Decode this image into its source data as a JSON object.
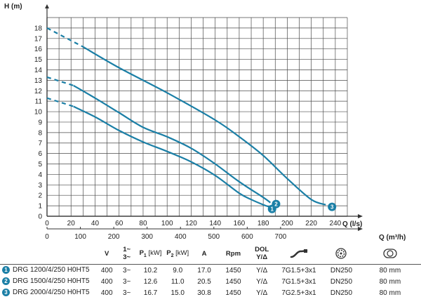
{
  "chart_data": {
    "type": "line",
    "title": "",
    "ylabel": "H (m)",
    "xlabel": "Q (l/s)",
    "x2label": "Q (m³/h)",
    "xlim": [
      0,
      250
    ],
    "ylim": [
      0,
      19
    ],
    "xticks": [
      0,
      20,
      40,
      60,
      80,
      100,
      120,
      140,
      160,
      180,
      200,
      220,
      240
    ],
    "yticks": [
      0,
      1,
      2,
      3,
      4,
      5,
      6,
      7,
      8,
      9,
      10,
      11,
      12,
      13,
      14,
      15,
      16,
      17,
      18
    ],
    "x2ticks": [
      0,
      100,
      200,
      300,
      400,
      500,
      600,
      700
    ],
    "grid": true,
    "line_color": "#1b7fa6",
    "series": [
      {
        "name": "1",
        "dashed": [
          [
            0,
            11.3
          ],
          [
            22,
            10.5
          ]
        ],
        "values": [
          [
            22,
            10.5
          ],
          [
            40,
            9.5
          ],
          [
            60,
            8.2
          ],
          [
            80,
            7.1
          ],
          [
            100,
            6.2
          ],
          [
            120,
            5.2
          ],
          [
            140,
            3.9
          ],
          [
            160,
            2.2
          ],
          [
            170,
            1.6
          ],
          [
            180,
            1.1
          ],
          [
            185,
            0.9
          ]
        ]
      },
      {
        "name": "2",
        "dashed": [
          [
            0,
            13.3
          ],
          [
            22,
            12.5
          ]
        ],
        "values": [
          [
            22,
            12.5
          ],
          [
            40,
            11.3
          ],
          [
            60,
            9.9
          ],
          [
            80,
            8.5
          ],
          [
            100,
            7.6
          ],
          [
            120,
            6.5
          ],
          [
            140,
            5.0
          ],
          [
            160,
            3.3
          ],
          [
            180,
            1.8
          ],
          [
            186,
            1.3
          ]
        ]
      },
      {
        "name": "3",
        "dashed": [
          [
            0,
            18.0
          ],
          [
            30,
            16.2
          ]
        ],
        "values": [
          [
            30,
            16.2
          ],
          [
            60,
            14.2
          ],
          [
            100,
            11.8
          ],
          [
            140,
            9.2
          ],
          [
            160,
            7.6
          ],
          [
            180,
            5.8
          ],
          [
            200,
            3.6
          ],
          [
            220,
            1.6
          ],
          [
            232,
            1.1
          ]
        ]
      }
    ]
  },
  "table": {
    "headers": {
      "v": "V",
      "phase_top": "1~",
      "phase_bottom": "3~",
      "p1": "P",
      "p1_sub": "1",
      "p1_unit": "[kW]",
      "p2": "P",
      "p2_sub": "2",
      "p2_unit": "[kW]",
      "a": "A",
      "rpm": "Rpm",
      "dol_top": "DOL",
      "dol_bottom": "Y/Δ"
    },
    "rows": [
      {
        "num": "1",
        "model": "DRG 1200/4/250 H0HT5",
        "v": "400",
        "phase": "3~",
        "p1": "10.2",
        "p2": "9.0",
        "a": "17.0",
        "rpm": "1450",
        "dol": "Y/Δ",
        "cable": "7G1.5+3x1",
        "dn": "DN250",
        "size": "80 mm"
      },
      {
        "num": "2",
        "model": "DRG 1500/4/250 H0HT5",
        "v": "400",
        "phase": "3~",
        "p1": "12.6",
        "p2": "11.0",
        "a": "20.5",
        "rpm": "1450",
        "dol": "Y/Δ",
        "cable": "7G1.5+3x1",
        "dn": "DN250",
        "size": "80 mm"
      },
      {
        "num": "3",
        "model": "DRG 2000/4/250 H0HT5",
        "v": "400",
        "phase": "3~",
        "p1": "16.7",
        "p2": "15.0",
        "a": "30.8",
        "rpm": "1450",
        "dol": "Y/Δ",
        "cable": "7G2.5+3x1",
        "dn": "DN250",
        "size": "80 mm"
      }
    ],
    "icons": {
      "cable": "cable-icon",
      "outlet": "impeller-icon",
      "passage": "solid-passage-icon"
    }
  }
}
